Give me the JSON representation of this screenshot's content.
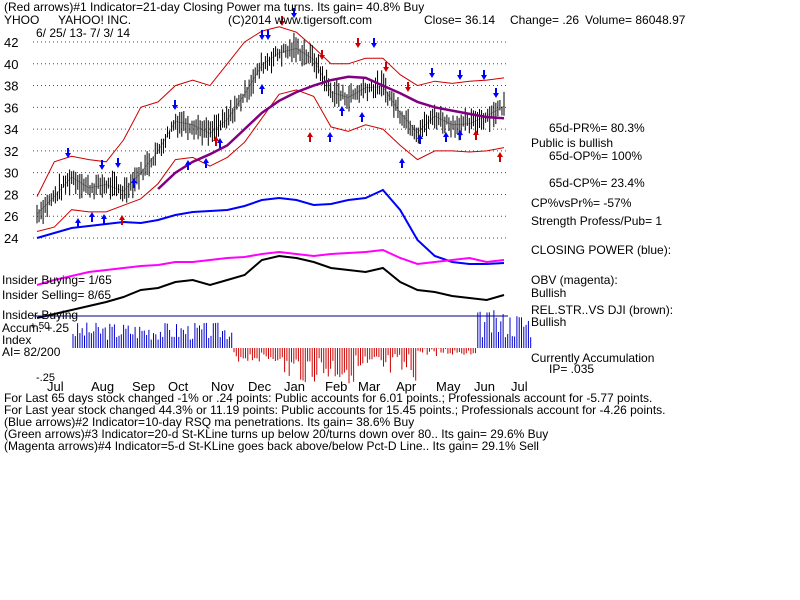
{
  "header": {
    "line1": "(Red arrows)#1 Indicator=21-day Closing Power ma turns. Its gain= 40.8% Buy",
    "ticker": "YHOO",
    "company": "YAHOO! INC.",
    "copyright": "(C)2014 www.tigersoft.com",
    "close": "Close=  36.14",
    "change": "Change= .26",
    "volume": "Volume=  86048.97",
    "date_range": "6/ 25/ 13- 7/ 3/ 14"
  },
  "right_panel": {
    "pr": "65d-PR%= 80.3%",
    "public": "Public is bullish",
    "op": "65d-OP%= 100%",
    "cp": "65d-CP%= 23.4%",
    "cpvspr": "CP%vsPr%= -57%",
    "strength": "Strength Profess/Pub= 1",
    "closing_power": "CLOSING POWER (blue):",
    "obv": "OBV (magenta):",
    "obv_state": "Bullish",
    "relstr": "REL.STR..VS DJI (brown):",
    "relstr_state": "Bullish",
    "accum": "Currently Accumulation",
    "ip": "IP=  .035"
  },
  "left_labels": {
    "insider_buying": "Insider Buying= 1/65",
    "insider_selling": "Insider Selling= 8/65",
    "insider_buying2": "Insider Buying",
    "accum": "Accum. +.25",
    "plus50": "+.50",
    "index": "Index",
    "ai": "AI= 82/200",
    "minus25": "-.25"
  },
  "footer": {
    "line1": "For Last 65 days stock changed -1% or  .24 points:  Public accounts for  6.01 points.;  Professionals account for -5.77 points.",
    "line2": "For Last year stock changed  44.3% or  11.19 points:  Public accounts for  15.45 points.;  Professionals account for -4.26 points.",
    "line3": "(Blue arrows)#2 Indicator=10-day RSQ ma penetrations. Its gain= 38.6% Buy",
    "line4": "(Green arrows)#3 Indicator=20-d St-KLine turns up below 20/turns down over 80.. Its gain= 29.6% Buy",
    "line5": "(Magenta arrows)#4 Indicator=5-d St-KLine goes back above/below Pct-D Line.. Its gain= 29.1% Sell"
  },
  "chart_data": {
    "type": "line",
    "months": [
      "Jul",
      "Aug",
      "Sep",
      "Oct",
      "Nov",
      "Dec",
      "Jan",
      "Feb",
      "Mar",
      "Apr",
      "May",
      "Jun",
      "Jul"
    ],
    "y_ticks": [
      24,
      26,
      28,
      30,
      32,
      34,
      36,
      38,
      40,
      42
    ],
    "ylim": [
      23,
      43
    ],
    "grid": true,
    "colors": {
      "price": "#000000",
      "bands": "#cc0000",
      "ma": "#800080",
      "closing_power": "#0000ff",
      "obv": "#ff00ff",
      "relstr": "#000000",
      "grid": "#008000",
      "accum_pos": "#0000cc",
      "accum_neg": "#cc0000"
    },
    "price": [
      26.2,
      27.8,
      29.6,
      28.6,
      28.9,
      28.3,
      30.0,
      32.0,
      34.7,
      34.4,
      33.6,
      34.9,
      37.2,
      39.9,
      41.0,
      41.4,
      40.4,
      37.4,
      36.9,
      37.8,
      37.9,
      35.5,
      33.7,
      35.2,
      34.4,
      34.5,
      35.2,
      36.1
    ],
    "upper_band": [
      27.8,
      31.0,
      31.5,
      31.2,
      31.0,
      33.0,
      36.0,
      36.5,
      38.0,
      38.5,
      38.0,
      40.0,
      42.0,
      43.0,
      43.4,
      42.9,
      41.5,
      40.0,
      40.0,
      40.5,
      40.5,
      39.0,
      38.0,
      38.4,
      38.2,
      38.4,
      38.5,
      38.7
    ],
    "lower_band": [
      24.6,
      25.0,
      26.6,
      26.4,
      26.4,
      27.0,
      27.6,
      29.0,
      31.2,
      31.4,
      30.6,
      31.4,
      32.8,
      35.0,
      37.2,
      37.6,
      37.0,
      34.2,
      33.8,
      34.4,
      34.0,
      32.5,
      31.2,
      32.0,
      32.0,
      31.9,
      32.0,
      32.3
    ],
    "moving_avg": [
      null,
      null,
      null,
      null,
      null,
      null,
      null,
      28.5,
      30.0,
      31.0,
      31.7,
      32.5,
      34.0,
      35.5,
      36.6,
      37.4,
      38.0,
      38.5,
      38.8,
      38.7,
      38.0,
      37.3,
      36.5,
      36.0,
      35.7,
      35.4,
      35.1,
      35.0
    ]
  }
}
